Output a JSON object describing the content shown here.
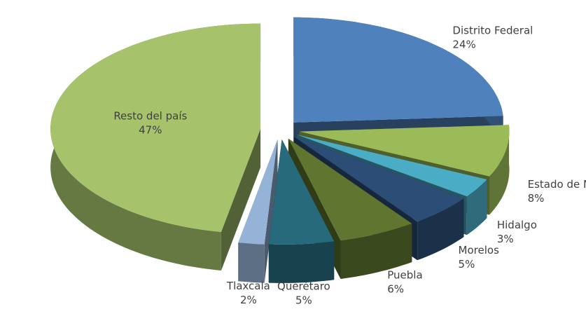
{
  "chart_data": {
    "type": "pie3d",
    "categories": [
      "Distrito Federal",
      "Estado de México",
      "Hidalgo",
      "Morelos",
      "Puebla",
      "Querétaro",
      "Tlaxcala",
      "Resto del país"
    ],
    "values": [
      24,
      8,
      3,
      5,
      6,
      5,
      2,
      47
    ],
    "value_labels": [
      "24%",
      "8%",
      "3%",
      "5%",
      "6%",
      "5%",
      "2%",
      "47%"
    ],
    "colors": [
      "#4f81bd",
      "#9bbb59",
      "#4bacc6",
      "#2c4d75",
      "#5f7530",
      "#276a7c",
      "#95b3d7",
      "#a6c36c"
    ]
  }
}
